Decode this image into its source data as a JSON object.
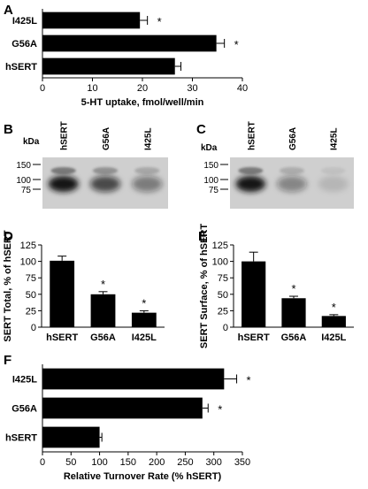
{
  "chart_data": [
    {
      "panel": "A",
      "type": "bar",
      "orientation": "horizontal",
      "categories": [
        "I425L",
        "G56A",
        "hSERT"
      ],
      "values": [
        19.5,
        34.8,
        26.5
      ],
      "errors": [
        1.5,
        1.6,
        1.2
      ],
      "significant": [
        true,
        true,
        false
      ],
      "significance_marker": "*",
      "xlabel": "5-HT uptake, fmol/well/min",
      "xlim": [
        0,
        40
      ],
      "xticks": [
        "0",
        "10",
        "20",
        "30",
        "40"
      ],
      "bar_color": "#000000"
    },
    {
      "panel": "D",
      "type": "bar",
      "orientation": "vertical",
      "categories": [
        "hSERT",
        "G56A",
        "I425L"
      ],
      "values": [
        101,
        50,
        22
      ],
      "errors": [
        7,
        4,
        3
      ],
      "significant": [
        false,
        true,
        true
      ],
      "significance_marker": "*",
      "ylabel": "SERT Total, % of hSERT",
      "ylim": [
        0,
        125
      ],
      "yticks": [
        "0",
        "25",
        "50",
        "75",
        "100",
        "125"
      ],
      "bar_color": "#000000"
    },
    {
      "panel": "E",
      "type": "bar",
      "orientation": "vertical",
      "categories": [
        "hSERT",
        "G56A",
        "I425L"
      ],
      "values": [
        100,
        44,
        17
      ],
      "errors": [
        14,
        3,
        2
      ],
      "significant": [
        false,
        true,
        true
      ],
      "significance_marker": "*",
      "ylabel": "SERT Surface, % of hSERT",
      "ylim": [
        0,
        125
      ],
      "yticks": [
        "0",
        "25",
        "50",
        "75",
        "100",
        "125"
      ],
      "bar_color": "#000000"
    },
    {
      "panel": "F",
      "type": "bar",
      "orientation": "horizontal",
      "categories": [
        "I425L",
        "G56A",
        "hSERT"
      ],
      "values": [
        318,
        280,
        100
      ],
      "errors": [
        22,
        10,
        4
      ],
      "significant": [
        true,
        true,
        false
      ],
      "significance_marker": "*",
      "xlabel": "Relative Turnover Rate (% hSERT)",
      "xlim": [
        0,
        350
      ],
      "xticks": [
        "0",
        "50",
        "100",
        "150",
        "200",
        "250",
        "300",
        "350"
      ],
      "bar_color": "#000000"
    }
  ],
  "blots": [
    {
      "panel": "B",
      "unit_label": "kDa",
      "lanes": [
        "hSERT",
        "G56A",
        "I425L"
      ],
      "markers": [
        "150",
        "100",
        "75"
      ],
      "band_intensity": [
        1.0,
        0.7,
        0.45
      ]
    },
    {
      "panel": "C",
      "unit_label": "kDa",
      "lanes": [
        "hSERT",
        "G56A",
        "I425L"
      ],
      "markers": [
        "150",
        "100",
        "75"
      ],
      "band_intensity": [
        1.0,
        0.4,
        0.12
      ]
    }
  ]
}
